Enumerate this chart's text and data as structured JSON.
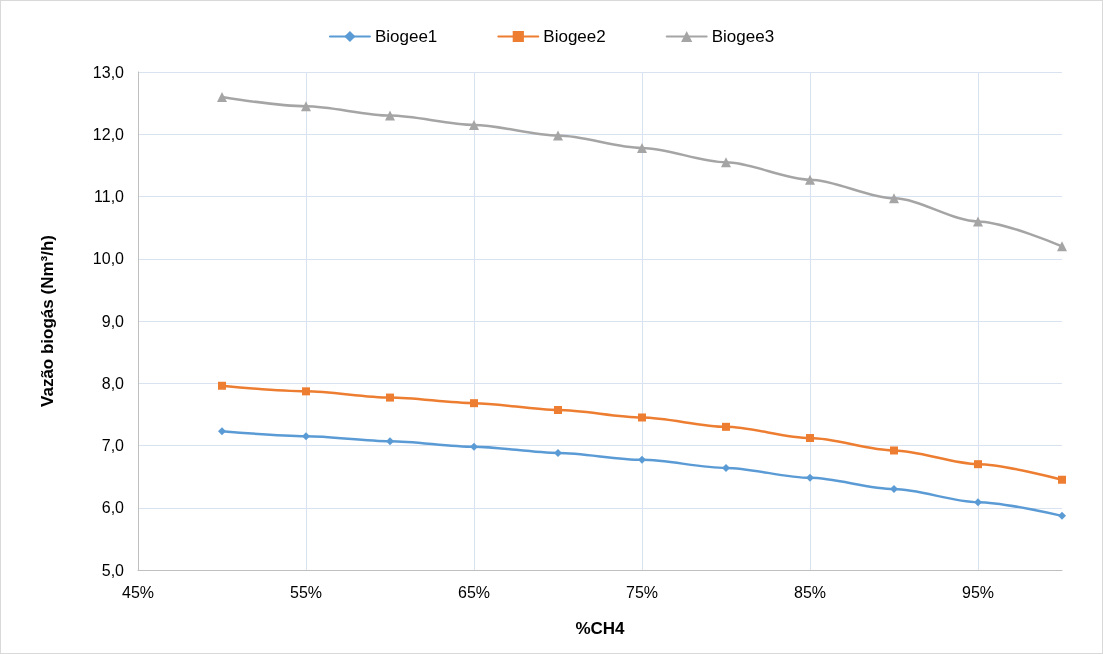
{
  "chart_data": {
    "type": "line",
    "xlabel": "%CH4",
    "ylabel": "Vazão biogás (Nm³/h)",
    "x": [
      50,
      55,
      60,
      65,
      70,
      75,
      80,
      85,
      90,
      95,
      100
    ],
    "series": [
      {
        "name": "Biogee1",
        "color": "#5b9bd5",
        "marker": "diamond",
        "values": [
          7.23,
          7.15,
          7.07,
          6.98,
          6.88,
          6.77,
          6.64,
          6.48,
          6.3,
          6.09,
          5.87
        ]
      },
      {
        "name": "Biogee2",
        "color": "#ed7d31",
        "marker": "square",
        "values": [
          7.96,
          7.87,
          7.77,
          7.68,
          7.57,
          7.45,
          7.3,
          7.12,
          6.92,
          6.7,
          6.45
        ]
      },
      {
        "name": "Biogee3",
        "color": "#a5a5a5",
        "marker": "triangle",
        "values": [
          12.6,
          12.45,
          12.3,
          12.15,
          11.98,
          11.78,
          11.55,
          11.27,
          10.97,
          10.6,
          10.2
        ]
      }
    ],
    "xlim": [
      45,
      100
    ],
    "xticks": [
      {
        "value": 45,
        "label": "45%"
      },
      {
        "value": 55,
        "label": "55%"
      },
      {
        "value": 65,
        "label": "65%"
      },
      {
        "value": 75,
        "label": "75%"
      },
      {
        "value": 85,
        "label": "85%"
      },
      {
        "value": 95,
        "label": "95%"
      }
    ],
    "ylim": [
      5,
      13
    ],
    "yticks": [
      {
        "value": 5,
        "label": "5,0"
      },
      {
        "value": 6,
        "label": "6,0"
      },
      {
        "value": 7,
        "label": "7,0"
      },
      {
        "value": 8,
        "label": "8,0"
      },
      {
        "value": 9,
        "label": "9,0"
      },
      {
        "value": 10,
        "label": "10,0"
      },
      {
        "value": 11,
        "label": "11,0"
      },
      {
        "value": 12,
        "label": "12,0"
      },
      {
        "value": 13,
        "label": "13,0"
      }
    ],
    "grid": true,
    "legend": "top",
    "line_style": "solid"
  }
}
